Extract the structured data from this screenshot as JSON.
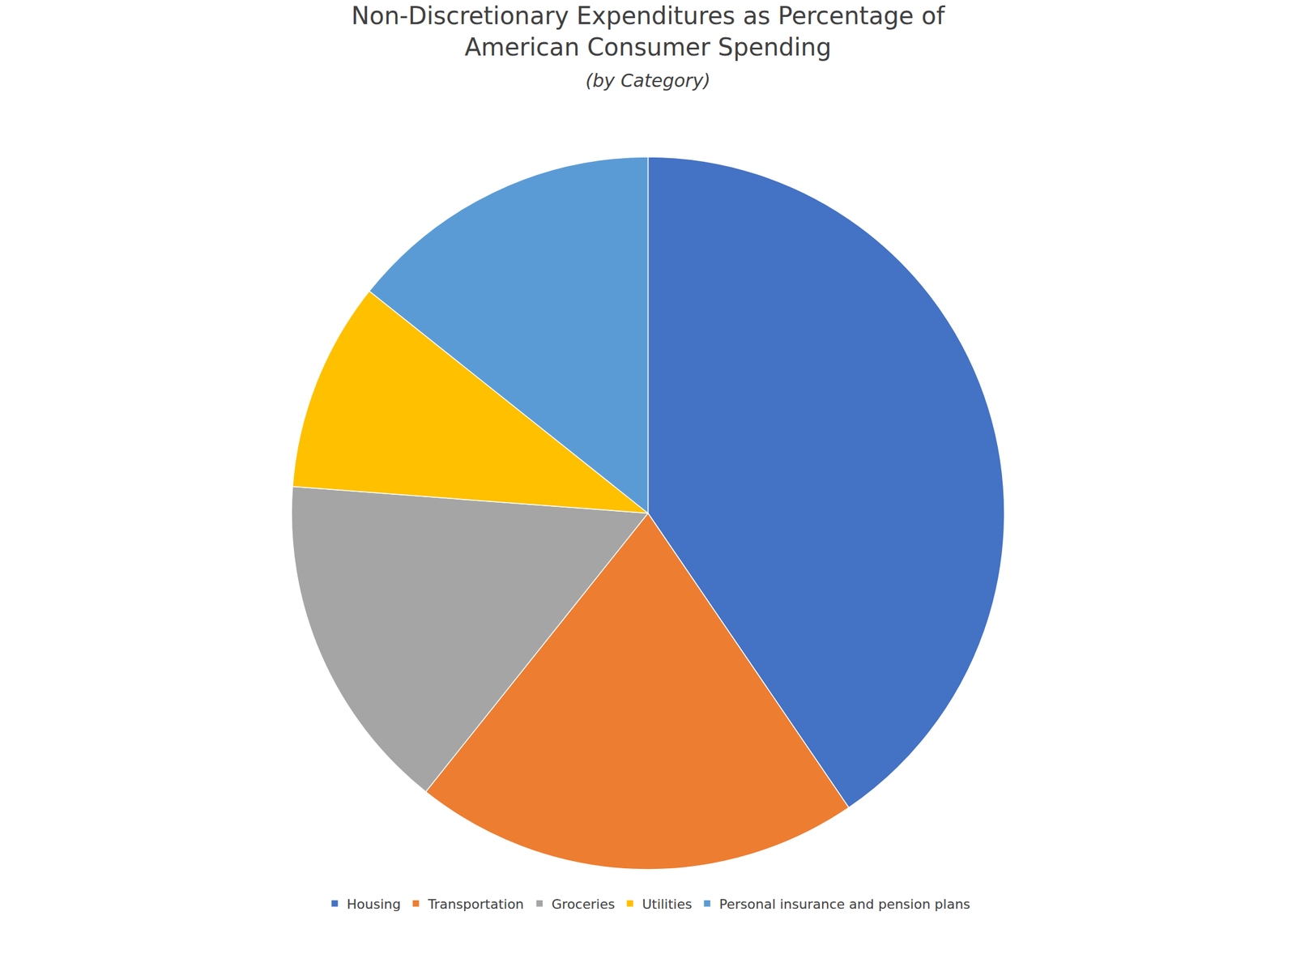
{
  "chart_data": {
    "type": "pie",
    "title": "Non-Discretionary Expenditures as Percentage of\nAmerican Consumer Spending",
    "subtitle": "(by Category)",
    "categories": [
      "Housing",
      "Transportation",
      "Groceries",
      "Utilities",
      "Personal insurance and pension plans"
    ],
    "values": [
      34,
      17,
      13,
      8,
      12
    ],
    "colors": [
      "#4472C4",
      "#ED7D31",
      "#A5A5A5",
      "#FFC000",
      "#5B9BD5"
    ],
    "legend": "bottom"
  }
}
